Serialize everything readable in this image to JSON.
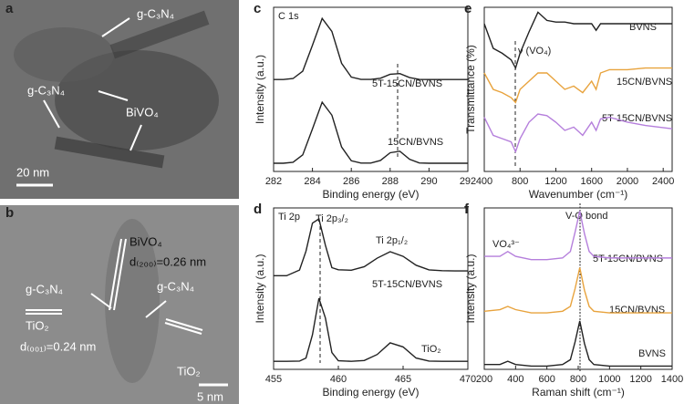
{
  "images": [
    {
      "label": "a",
      "texts": [
        "g-C₃N₄",
        "g-C₃N₄",
        "BiVO₄",
        "20 nm"
      ]
    },
    {
      "label": "b",
      "texts": [
        "BiVO₄",
        "d₍₂₀₀₎=0.26 nm",
        "g-C₃N₄",
        "g-C₃N₄",
        "TiO₂",
        "d₍₀₀₁₎=0.24 nm",
        "TiO₂",
        "5 nm"
      ]
    }
  ],
  "chart_data": [
    {
      "type": "line",
      "label": "c",
      "annotations": [
        "C 1s"
      ],
      "xlabel": "Binding energy (eV)",
      "ylabel": "Intensity (a.u.)",
      "x": [
        282,
        282.5,
        283,
        283.5,
        284,
        284.5,
        285,
        285.5,
        286,
        286.5,
        287,
        287.5,
        288,
        288.5,
        289,
        289.5,
        290,
        290.5,
        291,
        291.5,
        292
      ],
      "series": [
        {
          "name": "5T-15CN/BVNS",
          "color": "#222222",
          "values": [
            0.56,
            0.56,
            0.566,
            0.611,
            0.769,
            0.932,
            0.853,
            0.659,
            0.575,
            0.561,
            0.561,
            0.568,
            0.592,
            0.596,
            0.572,
            0.561,
            0.56,
            0.56,
            0.56,
            0.56,
            0.56
          ]
        },
        {
          "name": "15CN/BVNS",
          "color": "#222222",
          "values": [
            0.05,
            0.05,
            0.056,
            0.101,
            0.259,
            0.422,
            0.343,
            0.149,
            0.065,
            0.051,
            0.051,
            0.067,
            0.114,
            0.123,
            0.074,
            0.052,
            0.05,
            0.05,
            0.05,
            0.05,
            0.05
          ]
        }
      ],
      "xlim": [
        282,
        292
      ],
      "ylim": [
        0,
        1
      ],
      "xticks": [
        282,
        284,
        286,
        288,
        290,
        292
      ]
    },
    {
      "type": "line",
      "label": "d",
      "annotations": [
        "Ti 2p",
        "Ti 2p₃/₂",
        "Ti 2p₁/₂"
      ],
      "xlabel": "Binding energy (eV)",
      "ylabel": "Intensity (a.u.)",
      "x": [
        455,
        456,
        457,
        457.5,
        458,
        458.5,
        459,
        459.5,
        460,
        461,
        462,
        463,
        464,
        465,
        466,
        467,
        468,
        469,
        470
      ],
      "series": [
        {
          "name": "5T-15CN/BVNS",
          "color": "#222222",
          "values": [
            0.58,
            0.58,
            0.615,
            0.732,
            0.906,
            0.932,
            0.769,
            0.63,
            0.617,
            0.614,
            0.636,
            0.689,
            0.729,
            0.7,
            0.645,
            0.616,
            0.611,
            0.61,
            0.61
          ]
        },
        {
          "name": "TiO₂",
          "color": "#222222",
          "values": [
            0.05,
            0.05,
            0.051,
            0.07,
            0.214,
            0.44,
            0.318,
            0.104,
            0.053,
            0.05,
            0.055,
            0.092,
            0.164,
            0.139,
            0.07,
            0.051,
            0.05,
            0.05,
            0.05
          ]
        }
      ],
      "xlim": [
        455,
        470
      ],
      "ylim": [
        0,
        1
      ],
      "xticks": [
        455,
        460,
        465,
        470
      ]
    },
    {
      "type": "line",
      "label": "e",
      "annotations": [
        "ν (VO₄)"
      ],
      "xlabel": "Wavenumber (cm⁻¹)",
      "ylabel": "Transmittance (%)",
      "x": [
        400,
        500,
        600,
        700,
        750,
        800,
        900,
        1000,
        1100,
        1200,
        1300,
        1400,
        1500,
        1600,
        1650,
        1700,
        1800,
        2000,
        2200,
        2500
      ],
      "series": [
        {
          "name": "BVNS",
          "color": "#222222",
          "values": [
            0.9,
            0.75,
            0.72,
            0.68,
            0.63,
            0.72,
            0.85,
            0.97,
            0.92,
            0.91,
            0.91,
            0.9,
            0.9,
            0.9,
            0.86,
            0.9,
            0.9,
            0.9,
            0.9,
            0.9
          ]
        },
        {
          "name": "15CN/BVNS",
          "color": "#e8a33d",
          "values": [
            0.6,
            0.5,
            0.48,
            0.45,
            0.42,
            0.5,
            0.55,
            0.6,
            0.6,
            0.55,
            0.5,
            0.52,
            0.48,
            0.55,
            0.5,
            0.6,
            0.62,
            0.62,
            0.63,
            0.63
          ]
        },
        {
          "name": "5T-15CN/BVNS",
          "color": "#b57fdc",
          "values": [
            0.33,
            0.22,
            0.2,
            0.18,
            0.12,
            0.2,
            0.3,
            0.35,
            0.34,
            0.3,
            0.25,
            0.27,
            0.22,
            0.3,
            0.25,
            0.32,
            0.33,
            0.3,
            0.28,
            0.26
          ]
        }
      ],
      "xlim": [
        400,
        2500
      ],
      "ylim": [
        0,
        1
      ],
      "xticks": [
        400,
        800,
        1200,
        1600,
        2000,
        2400
      ]
    },
    {
      "type": "line",
      "label": "f",
      "annotations": [
        "V-O bond",
        "VO₄³⁻"
      ],
      "xlabel": "Raman shift (cm⁻¹)",
      "ylabel": "Intensity (a.u.)",
      "x": [
        200,
        300,
        350,
        400,
        500,
        600,
        700,
        750,
        780,
        810,
        840,
        870,
        900,
        1000,
        1100,
        1200,
        1300,
        1400
      ],
      "series": [
        {
          "name": "5T-15CN/BVNS",
          "color": "#b57fdc",
          "values": [
            0.7,
            0.7,
            0.73,
            0.7,
            0.68,
            0.68,
            0.69,
            0.73,
            0.85,
            0.98,
            0.84,
            0.73,
            0.7,
            0.69,
            0.69,
            0.69,
            0.69,
            0.69
          ]
        },
        {
          "name": "15CN/BVNS",
          "color": "#e8a33d",
          "values": [
            0.36,
            0.37,
            0.39,
            0.37,
            0.35,
            0.35,
            0.36,
            0.39,
            0.5,
            0.63,
            0.49,
            0.39,
            0.36,
            0.35,
            0.35,
            0.35,
            0.35,
            0.35
          ]
        },
        {
          "name": "BVNS",
          "color": "#222222",
          "values": [
            0.03,
            0.03,
            0.05,
            0.03,
            0.02,
            0.02,
            0.03,
            0.06,
            0.17,
            0.3,
            0.16,
            0.06,
            0.03,
            0.02,
            0.02,
            0.02,
            0.02,
            0.02
          ]
        }
      ],
      "xlim": [
        200,
        1400
      ],
      "ylim": [
        0,
        1
      ],
      "xticks": [
        200,
        400,
        600,
        800,
        1000,
        1200,
        1400
      ]
    }
  ]
}
